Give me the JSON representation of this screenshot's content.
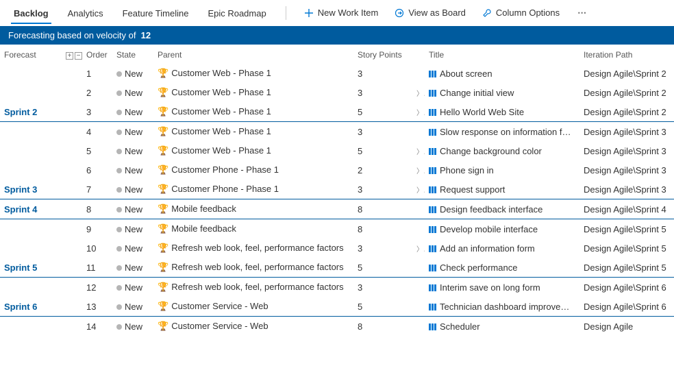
{
  "toolbar": {
    "tabs": [
      {
        "label": "Backlog",
        "active": true
      },
      {
        "label": "Analytics",
        "active": false
      },
      {
        "label": "Feature Timeline",
        "active": false
      },
      {
        "label": "Epic Roadmap",
        "active": false
      }
    ],
    "commands": {
      "new_item": "New Work Item",
      "view_board": "View as Board",
      "column_options": "Column Options",
      "more": "⋯"
    }
  },
  "banner": {
    "prefix": "Forecasting based on velocity of",
    "velocity": "12"
  },
  "columns": {
    "forecast": "Forecast",
    "order": "Order",
    "state": "State",
    "parent": "Parent",
    "story_points": "Story Points",
    "title": "Title",
    "iteration": "Iteration Path"
  },
  "rows": [
    {
      "forecast": "",
      "order": "1",
      "state": "New",
      "parent": "Customer Web - Phase 1",
      "sp": "3",
      "expand": false,
      "title": "About screen",
      "iter": "Design Agile\\Sprint 2"
    },
    {
      "forecast": "",
      "order": "2",
      "state": "New",
      "parent": "Customer Web - Phase 1",
      "sp": "3",
      "expand": true,
      "title": "Change initial view",
      "iter": "Design Agile\\Sprint 2"
    },
    {
      "forecast": "Sprint 2",
      "order": "3",
      "state": "New",
      "parent": "Customer Web - Phase 1",
      "sp": "5",
      "expand": true,
      "title": "Hello World Web Site",
      "iter": "Design Agile\\Sprint 2"
    },
    {
      "forecast": "",
      "order": "4",
      "state": "New",
      "parent": "Customer Web - Phase 1",
      "sp": "3",
      "expand": false,
      "title": "Slow response on information form",
      "iter": "Design Agile\\Sprint 3"
    },
    {
      "forecast": "",
      "order": "5",
      "state": "New",
      "parent": "Customer Web - Phase 1",
      "sp": "5",
      "expand": true,
      "title": "Change background color",
      "iter": "Design Agile\\Sprint 3"
    },
    {
      "forecast": "",
      "order": "6",
      "state": "New",
      "parent": "Customer Phone - Phase 1",
      "sp": "2",
      "expand": true,
      "title": "Phone sign in",
      "iter": "Design Agile\\Sprint 3"
    },
    {
      "forecast": "Sprint 3",
      "order": "7",
      "state": "New",
      "parent": "Customer Phone - Phase 1",
      "sp": "3",
      "expand": true,
      "title": "Request support",
      "iter": "Design Agile\\Sprint 3"
    },
    {
      "forecast": "Sprint 4",
      "order": "8",
      "state": "New",
      "parent": "Mobile feedback",
      "sp": "8",
      "expand": false,
      "title": "Design feedback interface",
      "iter": "Design Agile\\Sprint 4"
    },
    {
      "forecast": "",
      "order": "9",
      "state": "New",
      "parent": "Mobile feedback",
      "sp": "8",
      "expand": false,
      "title": "Develop mobile interface",
      "iter": "Design Agile\\Sprint 5"
    },
    {
      "forecast": "",
      "order": "10",
      "state": "New",
      "parent": "Refresh web look, feel, performance factors",
      "sp": "3",
      "expand": true,
      "title": "Add an information form",
      "iter": "Design Agile\\Sprint 5"
    },
    {
      "forecast": "Sprint 5",
      "order": "11",
      "state": "New",
      "parent": "Refresh web look, feel, performance factors",
      "sp": "5",
      "expand": false,
      "title": "Check performance",
      "iter": "Design Agile\\Sprint 5"
    },
    {
      "forecast": "",
      "order": "12",
      "state": "New",
      "parent": "Refresh web look, feel, performance factors",
      "sp": "3",
      "expand": false,
      "title": "Interim save on long form",
      "iter": "Design Agile\\Sprint 6"
    },
    {
      "forecast": "Sprint 6",
      "order": "13",
      "state": "New",
      "parent": "Customer Service - Web",
      "sp": "5",
      "expand": false,
      "title": "Technician dashboard improvements",
      "iter": "Design Agile\\Sprint 6"
    },
    {
      "forecast": "",
      "order": "14",
      "state": "New",
      "parent": "Customer Service - Web",
      "sp": "8",
      "expand": false,
      "title": "Scheduler",
      "iter": "Design Agile"
    }
  ],
  "colors": {
    "brand_blue": "#0078d4",
    "banner_bg": "#005b9e",
    "trophy": "#773b93",
    "story_icon": "#0078d4",
    "state_dot": "#b5b5b5"
  }
}
